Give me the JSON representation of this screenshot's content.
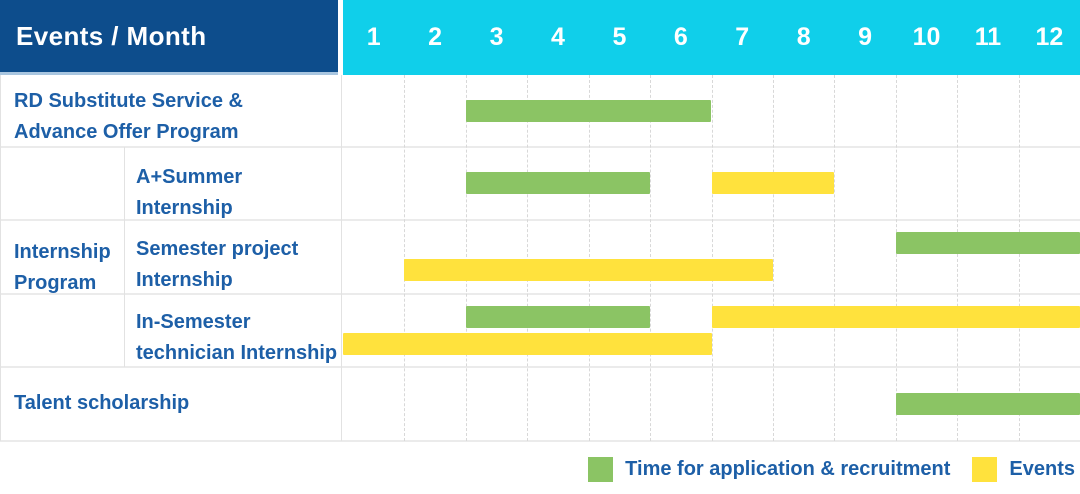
{
  "header": {
    "corner_label": "Events / Month",
    "months": [
      "1",
      "2",
      "3",
      "4",
      "5",
      "6",
      "7",
      "8",
      "9",
      "10",
      "11",
      "12"
    ]
  },
  "colors": {
    "header_bg": "#0d4d8c",
    "month_header_bg": "#10cfea",
    "application": "#8bc464",
    "event": "#ffe23d",
    "label_text": "#1d5fa7"
  },
  "group": {
    "label": "Internship Program",
    "label_lines": [
      "Internship",
      "Program"
    ]
  },
  "legend": [
    {
      "key": "application",
      "label": "Time for application & recruitment"
    },
    {
      "key": "event",
      "label": "Events"
    }
  ],
  "chart_data": {
    "type": "gantt",
    "x_axis": {
      "label": "Month",
      "ticks": [
        1,
        2,
        3,
        4,
        5,
        6,
        7,
        8,
        9,
        10,
        11,
        12
      ]
    },
    "legend_entries": [
      {
        "label": "Time for application & recruitment",
        "color": "#8bc464"
      },
      {
        "label": "Events",
        "color": "#ffe23d"
      }
    ],
    "rows": [
      {
        "group": null,
        "label": "RD Substitute Service & Advance Offer Program",
        "label_lines": [
          "RD Substitute Service &",
          "Advance Offer Program"
        ],
        "bars": [
          {
            "kind": "application",
            "start": 3,
            "end": 6,
            "lane": "center"
          }
        ]
      },
      {
        "group": "Internship Program",
        "label": "A+Summer Internship",
        "label_lines": [
          "A+Summer",
          "Internship"
        ],
        "bars": [
          {
            "kind": "application",
            "start": 3,
            "end": 5,
            "lane": "center"
          },
          {
            "kind": "event",
            "start": 7,
            "end": 8,
            "lane": "center"
          }
        ]
      },
      {
        "group": "Internship Program",
        "label": "Semester project Internship",
        "label_lines": [
          "Semester project",
          "Internship"
        ],
        "bars": [
          {
            "kind": "application",
            "start": 10,
            "end": 12,
            "lane": "upper"
          },
          {
            "kind": "event",
            "start": 2,
            "end": 7,
            "lane": "lower"
          }
        ]
      },
      {
        "group": "Internship Program",
        "label": "In-Semester technician Internship",
        "label_lines": [
          "In-Semester",
          "technician Internship"
        ],
        "bars": [
          {
            "kind": "application",
            "start": 3,
            "end": 5,
            "lane": "upper"
          },
          {
            "kind": "event",
            "start": 7,
            "end": 12,
            "lane": "upper"
          },
          {
            "kind": "event",
            "start": 1,
            "end": 6,
            "lane": "lower"
          }
        ]
      },
      {
        "group": null,
        "label": "Talent scholarship",
        "label_lines": [
          "Talent scholarship"
        ],
        "bars": [
          {
            "kind": "application",
            "start": 10,
            "end": 12,
            "lane": "center"
          }
        ]
      }
    ]
  }
}
